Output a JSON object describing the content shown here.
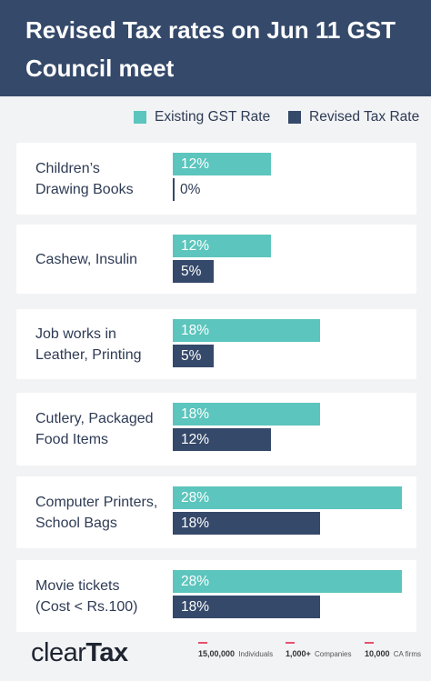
{
  "title": "Revised Tax rates on Jun 11 GST Council meet",
  "colors": {
    "header_bg": "#35496a",
    "existing": "#5cc5bd",
    "revised": "#35496a",
    "background": "#f2f3f5",
    "accent": "#e8506e"
  },
  "legend": {
    "existing_label": "Existing GST Rate",
    "revised_label": "Revised Tax Rate"
  },
  "chart_data": {
    "type": "bar",
    "title": "Revised Tax rates on Jun 11 GST Council meet",
    "xlabel": "",
    "ylabel": "",
    "xlim": [
      0,
      28
    ],
    "categories": [
      "Children’s\nDrawing Books",
      "Cashew, Insulin",
      "Job works in\nLeather, Printing",
      "Cutlery, Packaged\nFood Items",
      "Computer Printers,\nSchool Bags",
      "Movie tickets\n(Cost < Rs.100)"
    ],
    "series": [
      {
        "name": "Existing GST Rate",
        "values": [
          12,
          12,
          18,
          18,
          28,
          28
        ],
        "labels": [
          "12%",
          "12%",
          "18%",
          "18%",
          "28%",
          "28%"
        ]
      },
      {
        "name": "Revised Tax Rate",
        "values": [
          0,
          5,
          5,
          12,
          18,
          18
        ],
        "labels": [
          "0%",
          "5%",
          "5%",
          "12%",
          "18%",
          "18%"
        ]
      }
    ]
  },
  "footer": {
    "logo_light": "clear",
    "logo_bold": "Tax",
    "stats": [
      {
        "number": "15,00,000",
        "label": "Individuals"
      },
      {
        "number": "1,000+",
        "label": "Companies"
      },
      {
        "number": "10,000",
        "label": "CA firms"
      }
    ]
  }
}
